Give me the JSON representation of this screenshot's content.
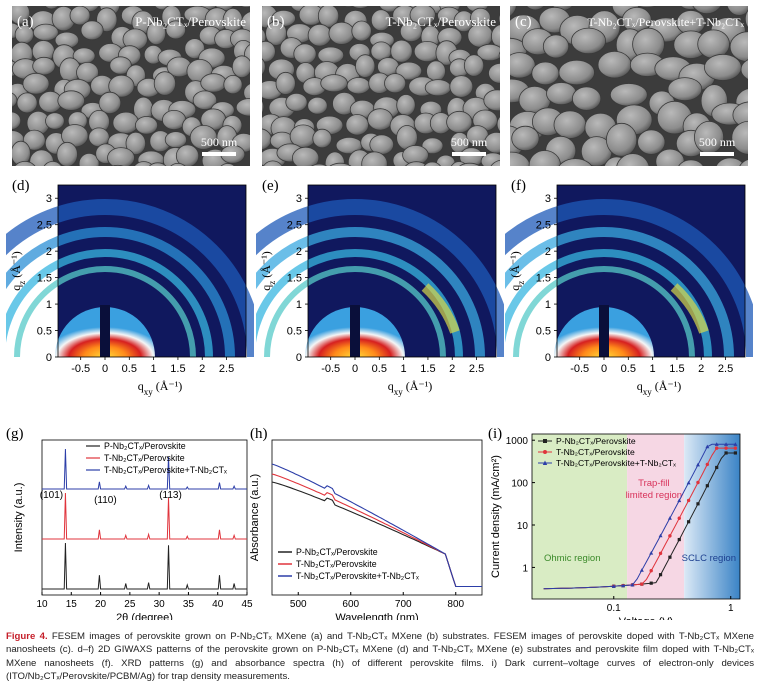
{
  "sem_panels": [
    {
      "letter": "(a)",
      "title": "P-Nb₂CTₓ/Perovskite",
      "scale": "500 nm"
    },
    {
      "letter": "(b)",
      "title": "T-Nb₂CTₓ/Perovskite",
      "scale": "500 nm"
    },
    {
      "letter": "(c)",
      "title": "T-Nb₂CTₓ/Perovskite+T-Nb₂CTₓ",
      "scale": "500 nm"
    }
  ],
  "giwaxs_panels": [
    {
      "letter": "(d)"
    },
    {
      "letter": "(e)"
    },
    {
      "letter": "(f)"
    }
  ],
  "giwaxs_axes": {
    "ylabel": "q₂ (Å⁻¹)",
    "ylabel_main": "q",
    "ylabel_sub": "z",
    "ylabel_unit": " (Å⁻¹)",
    "xlabel_main": "q",
    "xlabel_sub": "xy",
    "xlabel_unit": " (Å⁻¹)",
    "yticks": [
      "0",
      "0.5",
      "1",
      "1.5",
      "2",
      "2.5",
      "3"
    ],
    "xticks": [
      "-0.5",
      "0",
      "0.5",
      "1",
      "1.5",
      "2",
      "2.5"
    ]
  },
  "chart_data": [
    {
      "type": "line",
      "panel": "(g)",
      "xlabel": "2θ (degree)",
      "ylabel": "Intensity (a.u.)",
      "xlim": [
        10,
        45
      ],
      "xticks": [
        "10",
        "15",
        "20",
        "25",
        "30",
        "35",
        "40",
        "45"
      ],
      "peak_labels": [
        "(101)",
        "(110)",
        "(113)"
      ],
      "peak_positions": [
        14.0,
        19.8,
        31.6
      ],
      "series": [
        {
          "name": "P-Nb₂CTₓ/Perovskite",
          "color": "#222222",
          "peaks": [
            [
              14.0,
              1.0
            ],
            [
              19.8,
              0.3
            ],
            [
              24.3,
              0.12
            ],
            [
              28.2,
              0.14
            ],
            [
              31.6,
              0.95
            ],
            [
              34.8,
              0.09
            ],
            [
              40.3,
              0.3
            ],
            [
              42.8,
              0.12
            ]
          ]
        },
        {
          "name": "T-Nb₂CTₓ/Perovskite",
          "color": "#e0343c",
          "peaks": [
            [
              14.0,
              1.0
            ],
            [
              19.8,
              0.2
            ],
            [
              24.3,
              0.08
            ],
            [
              28.2,
              0.1
            ],
            [
              31.6,
              0.9
            ],
            [
              34.8,
              0.06
            ],
            [
              40.3,
              0.2
            ],
            [
              42.8,
              0.08
            ]
          ]
        },
        {
          "name": "T-Nb₂CTₓ/Perovskite+T-Nb₂CTₓ",
          "color": "#2c3ea8",
          "peaks": [
            [
              14.0,
              1.0
            ],
            [
              19.8,
              0.18
            ],
            [
              24.3,
              0.07
            ],
            [
              28.2,
              0.09
            ],
            [
              31.6,
              0.8
            ],
            [
              34.8,
              0.05
            ],
            [
              40.3,
              0.16
            ],
            [
              42.8,
              0.07
            ]
          ]
        }
      ]
    },
    {
      "type": "line",
      "panel": "(h)",
      "xlabel": "Wavelength (nm)",
      "ylabel": "Absorbance (a.u.)",
      "xlim": [
        450,
        850
      ],
      "xticks": [
        "500",
        "600",
        "700",
        "800"
      ],
      "series": [
        {
          "name": "P-Nb₂CTₓ/Perovskite",
          "color": "#222222"
        },
        {
          "name": "T-Nb₂CTₓ/Perovskite",
          "color": "#e0343c"
        },
        {
          "name": "T-Nb₂CTₓ/Perovskite+T-Nb₂CTₓ",
          "color": "#2c3ea8"
        }
      ]
    },
    {
      "type": "line",
      "panel": "(i)",
      "xlabel": "Voltage (V)",
      "ylabel": "Current density (mA/cm²)",
      "x_scale": "log",
      "y_scale": "log",
      "yticks": [
        "1",
        "10",
        "100",
        "1000"
      ],
      "xticks": [
        "0.1",
        "1"
      ],
      "regions": [
        "Ohmic region",
        "Trap-fill limited region",
        "SCLC region"
      ],
      "series": [
        {
          "name": "P-Nb₂CTₓ/Perovskite",
          "color": "#222222",
          "marker": "square",
          "onset_v": 0.42
        },
        {
          "name": "T-Nb₂CTₓ/Perovskite",
          "color": "#e0343c",
          "marker": "circle",
          "onset_v": 0.33
        },
        {
          "name": "T-Nb₂CTₓ/Perovskite+T-Nb₂CTₓ",
          "color": "#2c3ea8",
          "marker": "triangle",
          "onset_v": 0.27
        }
      ]
    }
  ],
  "caption": {
    "label": "Figure 4.",
    "text": " FESEM images of perovskite grown on P-Nb₂CTₓ MXene (a) and T-Nb₂CTₓ MXene (b) substrates. FESEM images of perovskite doped with T-Nb₂CTₓ MXene nanosheets (c). d–f) 2D GIWAXS patterns of the perovskite grown on P-Nb₂CTₓ MXene (d) and T-Nb₂CTₓ MXene (e) substrates and perovskite film doped with T-Nb₂CTₓ MXene nanosheets (f). XRD patterns (g) and absorbance spectra (h) of different perovskite films. i) Dark current–voltage curves of electron-only devices (ITO/Nb₂CTₓ/Perovskite/PCBM/Ag) for trap density measurements."
  }
}
